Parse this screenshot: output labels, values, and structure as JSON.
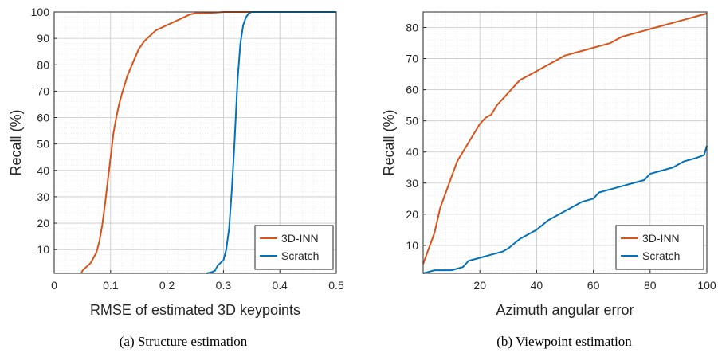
{
  "colors": {
    "series_a": "#d95319",
    "series_b": "#0072bd",
    "axis": "#262626",
    "grid_major": "#c8c8c8",
    "grid_minor": "#e6e6e6"
  },
  "chart_data": [
    {
      "type": "line",
      "title": "",
      "caption": "(a) Structure estimation",
      "xlabel": "RMSE of estimated 3D keypoints",
      "ylabel": "Recall (%)",
      "xlim": [
        0,
        0.5
      ],
      "ylim": [
        1,
        100
      ],
      "xticks": [
        0,
        0.1,
        0.2,
        0.3,
        0.4,
        0.5
      ],
      "xtick_labels": [
        "0",
        "0.1",
        "0.2",
        "0.3",
        "0.4",
        "0.5"
      ],
      "yticks": [
        10,
        20,
        30,
        40,
        50,
        60,
        70,
        80,
        90,
        100
      ],
      "ytick_labels": [
        "10",
        "20",
        "30",
        "40",
        "50",
        "60",
        "70",
        "80",
        "90",
        "100"
      ],
      "grid": true,
      "legend_position": "bottom-right",
      "series": [
        {
          "name": "3D-INN",
          "x": [
            0.048,
            0.05,
            0.055,
            0.06,
            0.065,
            0.07,
            0.075,
            0.08,
            0.085,
            0.09,
            0.095,
            0.1,
            0.105,
            0.11,
            0.115,
            0.12,
            0.13,
            0.14,
            0.15,
            0.16,
            0.17,
            0.175,
            0.18,
            0.19,
            0.2,
            0.21,
            0.22,
            0.23,
            0.24,
            0.25,
            0.26,
            0.27,
            0.28,
            0.29,
            0.3,
            0.35,
            0.5
          ],
          "y": [
            1,
            2,
            3,
            4,
            5,
            7,
            9,
            13,
            19,
            27,
            36,
            45,
            54,
            60,
            65,
            69,
            76,
            81,
            86,
            89,
            91,
            92,
            93,
            94,
            95,
            96,
            97,
            98,
            99,
            99.5,
            99.5,
            99.6,
            99.7,
            99.8,
            100,
            100,
            100
          ]
        },
        {
          "name": "Scratch",
          "x": [
            0.27,
            0.28,
            0.285,
            0.29,
            0.3,
            0.305,
            0.31,
            0.315,
            0.32,
            0.325,
            0.33,
            0.335,
            0.34,
            0.345,
            0.35,
            0.355,
            0.36,
            0.4,
            0.5
          ],
          "y": [
            1,
            1.5,
            2,
            4,
            6,
            10,
            18,
            33,
            52,
            74,
            88,
            95,
            98,
            99.5,
            100,
            100,
            100,
            100,
            100
          ]
        }
      ]
    },
    {
      "type": "line",
      "title": "",
      "caption": "(b) Viewpoint estimation",
      "xlabel": "Azimuth angular error",
      "ylabel": "Recall (%)",
      "xlim": [
        0,
        100
      ],
      "ylim": [
        1,
        85
      ],
      "xticks": [
        20,
        40,
        60,
        80,
        100
      ],
      "xtick_labels": [
        "20",
        "40",
        "60",
        "80",
        "100"
      ],
      "yticks": [
        10,
        20,
        30,
        40,
        50,
        60,
        70,
        80
      ],
      "ytick_labels": [
        "10",
        "20",
        "30",
        "40",
        "50",
        "60",
        "70",
        "80"
      ],
      "grid": true,
      "legend_position": "bottom-right",
      "series": [
        {
          "name": "3D-INN",
          "x": [
            0,
            2,
            4,
            6,
            8,
            10,
            12,
            14,
            16,
            18,
            20,
            22,
            24,
            26,
            28,
            30,
            32,
            34,
            36,
            38,
            40,
            42,
            44,
            46,
            48,
            50,
            54,
            58,
            62,
            66,
            70,
            74,
            78,
            82,
            86,
            90,
            94,
            98,
            100
          ],
          "y": [
            4,
            9,
            14,
            22,
            27,
            32,
            37,
            40,
            43,
            46,
            49,
            51,
            52,
            55,
            57,
            59,
            61,
            63,
            64,
            65,
            66,
            67,
            68,
            69,
            70,
            71,
            72,
            73,
            74,
            75,
            77,
            78,
            79,
            80,
            81,
            82,
            83,
            84,
            84.5
          ]
        },
        {
          "name": "Scratch",
          "x": [
            0,
            2,
            4,
            8,
            10,
            12,
            14,
            16,
            20,
            24,
            28,
            30,
            34,
            38,
            40,
            44,
            48,
            52,
            56,
            60,
            62,
            66,
            70,
            74,
            78,
            80,
            84,
            88,
            92,
            96,
            99,
            100
          ],
          "y": [
            1,
            1.5,
            2,
            2,
            2,
            2.5,
            3,
            5,
            6,
            7,
            8,
            9,
            12,
            14,
            15,
            18,
            20,
            22,
            24,
            25,
            27,
            28,
            29,
            30,
            31,
            33,
            34,
            35,
            37,
            38,
            39,
            42
          ]
        }
      ]
    }
  ]
}
